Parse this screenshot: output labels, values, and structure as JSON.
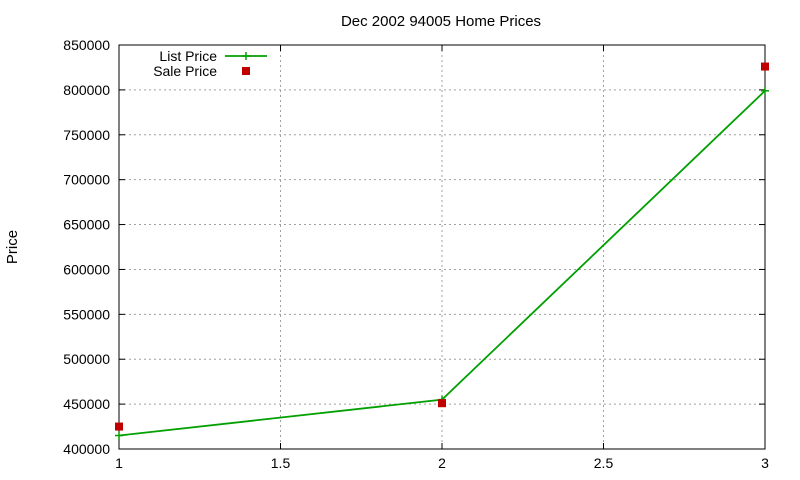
{
  "chart_data": {
    "type": "line",
    "title": "Dec 2002 94005 Home Prices",
    "xlabel": "",
    "ylabel": "Price",
    "xlim": [
      1,
      3
    ],
    "ylim": [
      400000,
      850000
    ],
    "xticks": [
      "1",
      "1.5",
      "2",
      "2.5",
      "3"
    ],
    "yticks": [
      "400000",
      "450000",
      "500000",
      "550000",
      "600000",
      "650000",
      "700000",
      "750000",
      "800000",
      "850000"
    ],
    "grid": true,
    "legend_position": "top-left",
    "series": [
      {
        "name": "List Price",
        "style": "line-with-plus-markers",
        "color": "#00a000",
        "x": [
          1,
          2,
          3
        ],
        "y": [
          415000,
          455000,
          799000
        ]
      },
      {
        "name": "Sale Price",
        "style": "square-markers",
        "color": "#c00000",
        "x": [
          1,
          2,
          3
        ],
        "y": [
          425000,
          451000,
          826000
        ]
      }
    ]
  }
}
